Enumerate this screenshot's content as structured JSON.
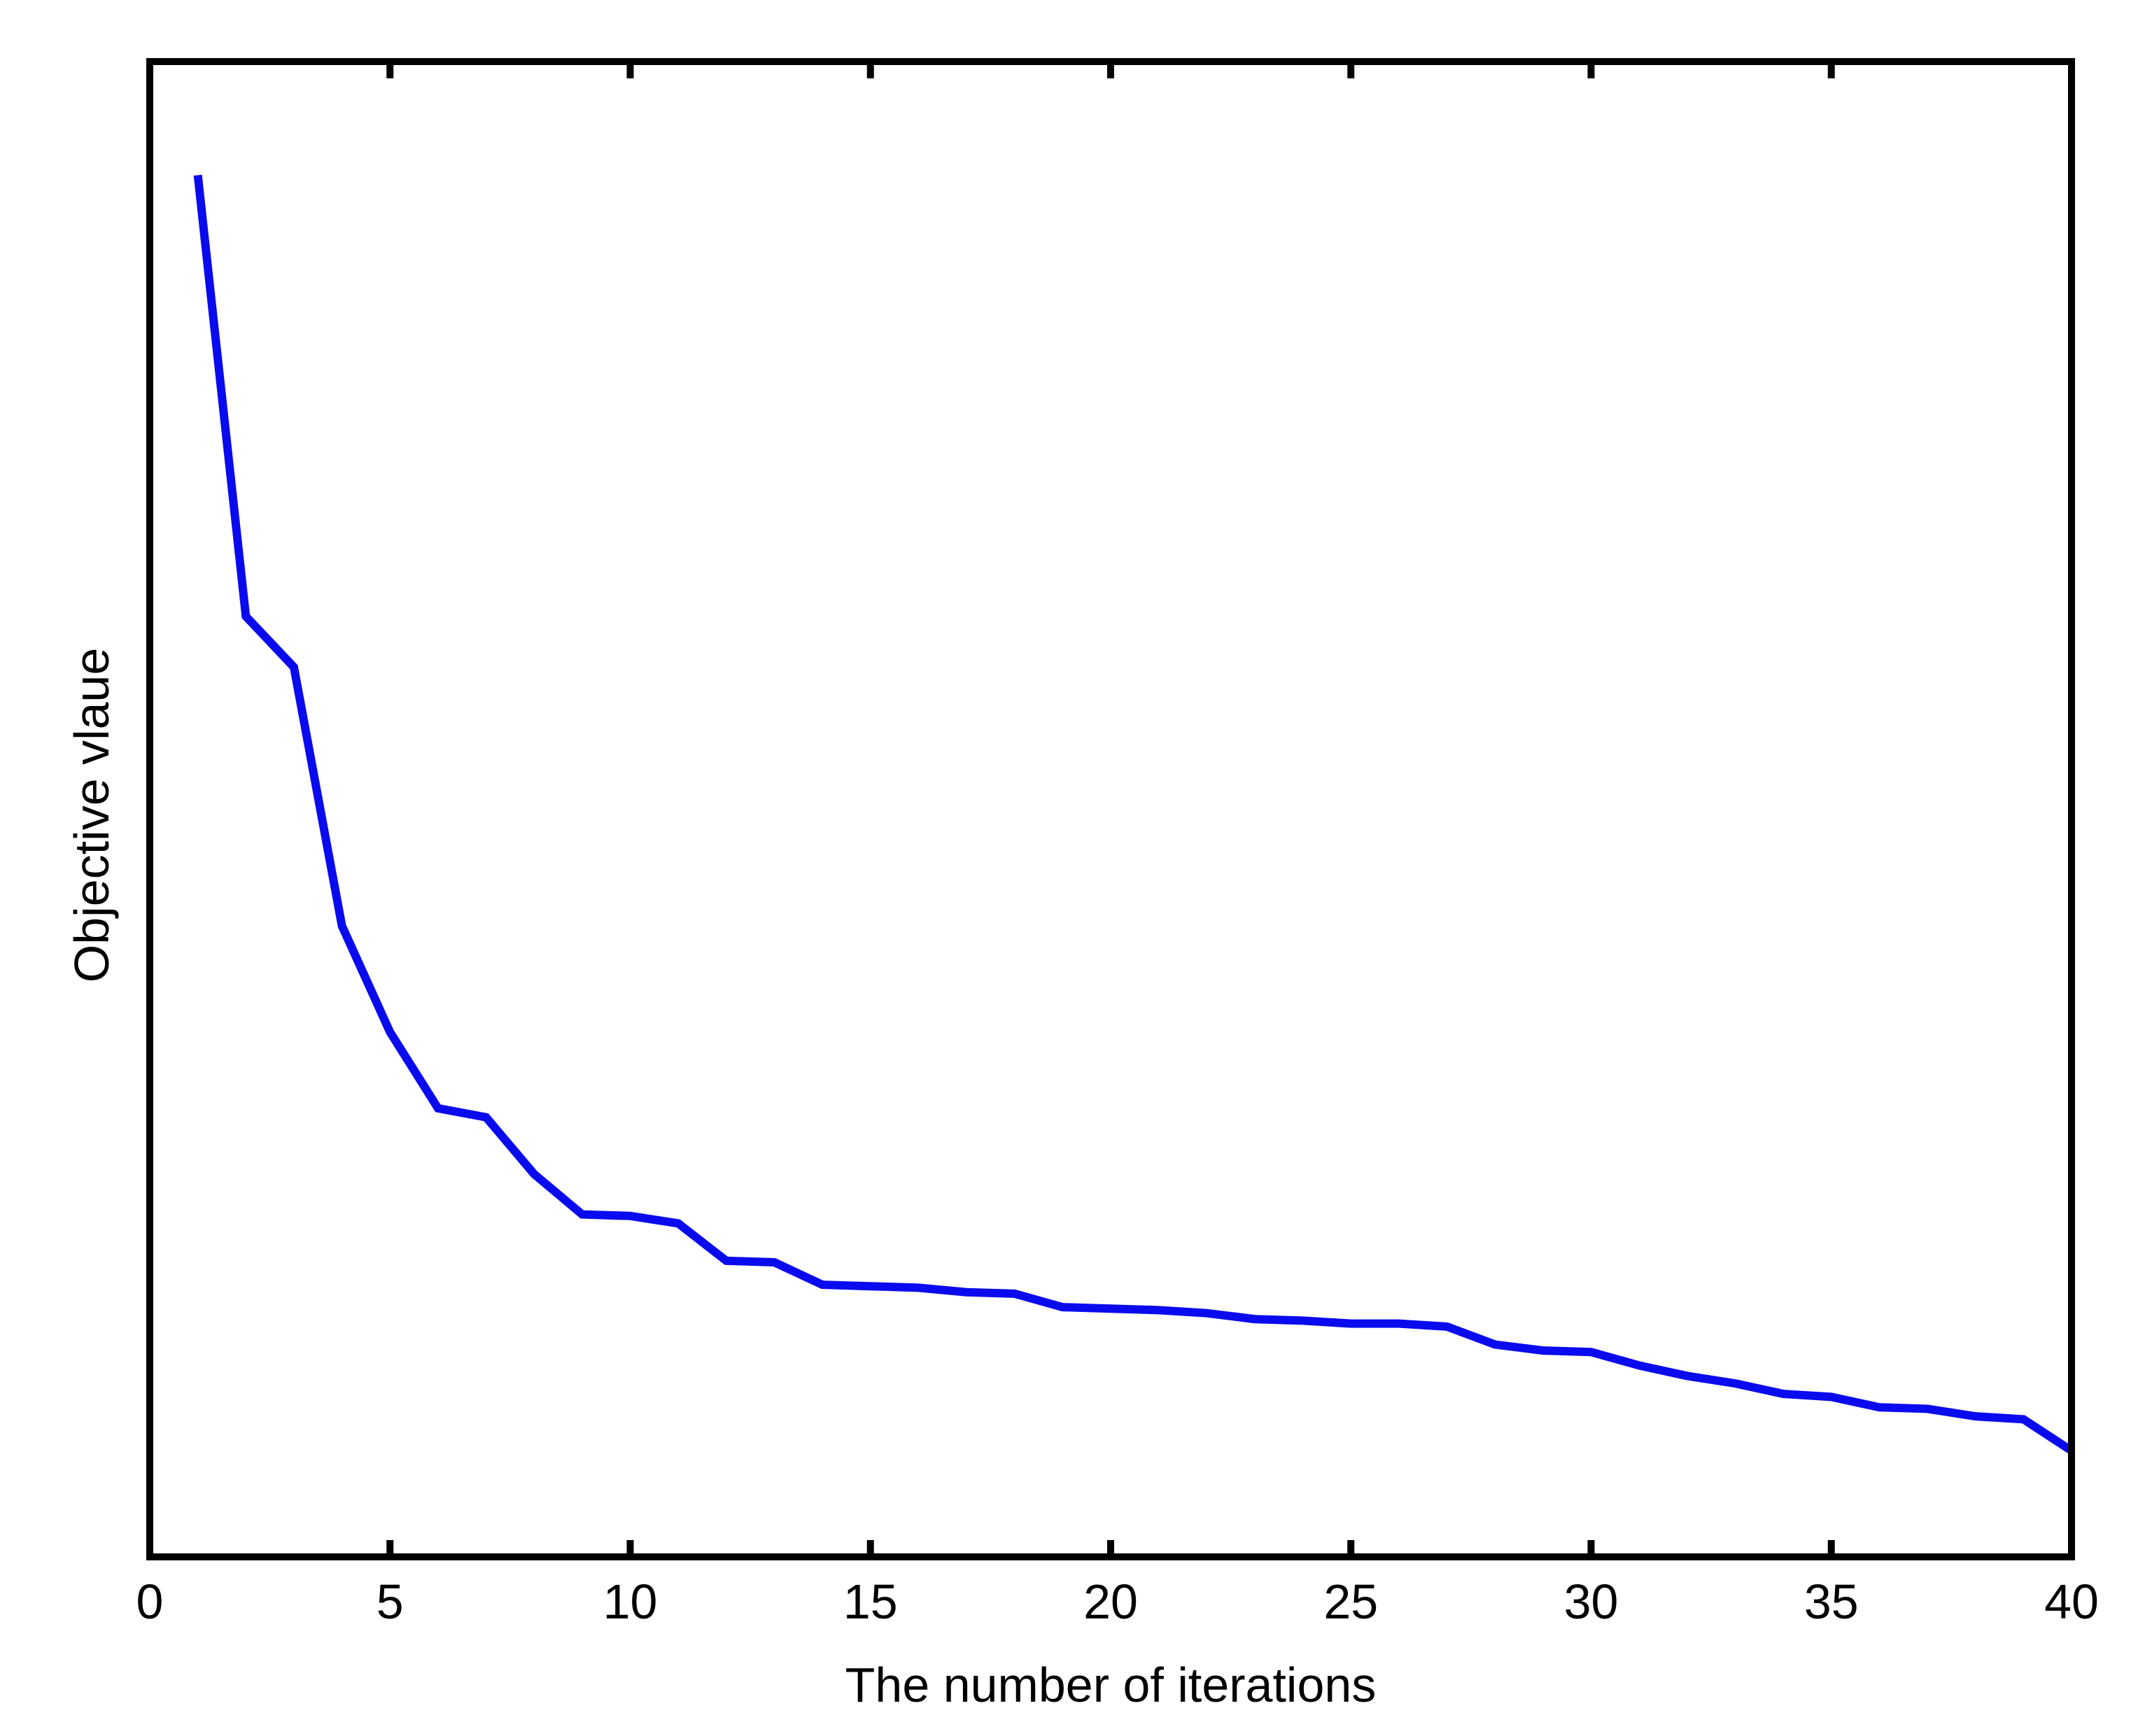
{
  "chart_data": {
    "type": "line",
    "xlabel": "The number of iterations",
    "ylabel": "Objective vlaue",
    "x": [
      1,
      2,
      3,
      4,
      5,
      6,
      7,
      8,
      9,
      10,
      11,
      12,
      13,
      14,
      15,
      16,
      17,
      18,
      19,
      20,
      21,
      22,
      23,
      24,
      25,
      26,
      27,
      28,
      29,
      30,
      31,
      32,
      33,
      34,
      35,
      36,
      37,
      38,
      39,
      40
    ],
    "series": [
      {
        "color": "#0a0aee",
        "values": [
          0.924,
          0.629,
          0.595,
          0.422,
          0.351,
          0.3,
          0.294,
          0.256,
          0.229,
          0.228,
          0.223,
          0.198,
          0.197,
          0.182,
          0.181,
          0.18,
          0.177,
          0.176,
          0.167,
          0.166,
          0.165,
          0.163,
          0.159,
          0.158,
          0.156,
          0.156,
          0.154,
          0.142,
          0.138,
          0.137,
          0.128,
          0.121,
          0.116,
          0.109,
          0.107,
          0.1,
          0.099,
          0.094,
          0.092,
          0.071
        ]
      }
    ],
    "xlim": [
      0,
      40
    ],
    "xticks": [
      0,
      5,
      10,
      15,
      20,
      25,
      30,
      35,
      40
    ],
    "ylim": [
      0,
      1
    ]
  }
}
